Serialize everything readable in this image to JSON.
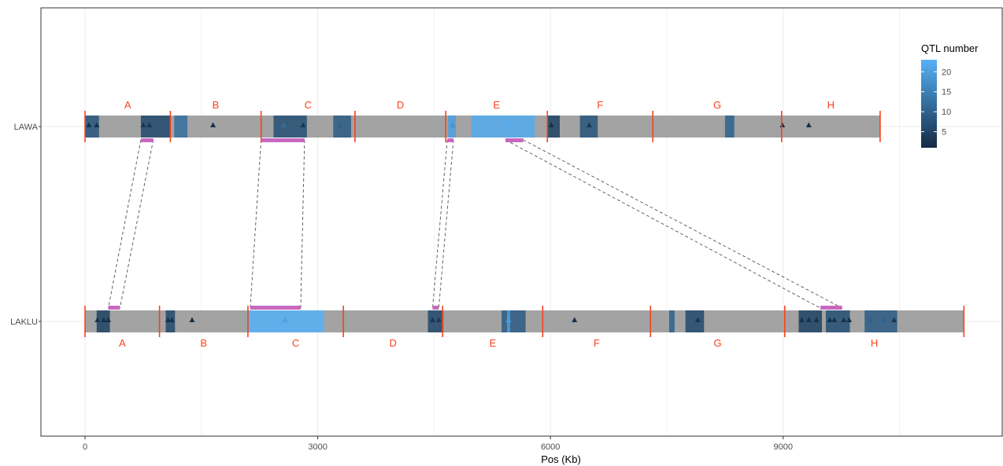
{
  "chart_data": {
    "type": "genome-map",
    "xlabel": "Pos (Kb)",
    "ylabel": "",
    "xlim": [
      -1700,
      11800
    ],
    "x_ticks": [
      0,
      3000,
      6000,
      9000
    ],
    "grid": true,
    "legend": {
      "title": "QTL number",
      "placement": "top-right",
      "ticks": [
        5,
        10,
        15,
        20
      ],
      "range": [
        1,
        23
      ],
      "color_low": "#132b43",
      "color_high": "#56b1f7"
    },
    "tracks": [
      {
        "name": "LAWA",
        "length": 10250,
        "boundaries": [
          0,
          1100,
          2270,
          3480,
          4650,
          5960,
          7320,
          8980,
          10250
        ],
        "segments": [
          {
            "label": "A",
            "start": 0,
            "end": 1100
          },
          {
            "label": "B",
            "start": 1100,
            "end": 2270
          },
          {
            "label": "C",
            "start": 2270,
            "end": 3480
          },
          {
            "label": "D",
            "start": 3480,
            "end": 4650
          },
          {
            "label": "E",
            "start": 4650,
            "end": 5960
          },
          {
            "label": "F",
            "start": 5960,
            "end": 7320
          },
          {
            "label": "G",
            "start": 7320,
            "end": 8980
          },
          {
            "label": "H",
            "start": 8980,
            "end": 10250
          }
        ],
        "qtl_regions": [
          {
            "start": 0,
            "end": 180,
            "qtl": 8
          },
          {
            "start": 720,
            "end": 1100,
            "qtl": 6
          },
          {
            "start": 1150,
            "end": 1320,
            "qtl": 12
          },
          {
            "start": 2430,
            "end": 2860,
            "qtl": 7
          },
          {
            "start": 3200,
            "end": 3430,
            "qtl": 9
          },
          {
            "start": 4680,
            "end": 4780,
            "qtl": 20
          },
          {
            "start": 4980,
            "end": 5800,
            "qtl": 22
          },
          {
            "start": 5960,
            "end": 6120,
            "qtl": 5
          },
          {
            "start": 6380,
            "end": 6610,
            "qtl": 8
          },
          {
            "start": 8250,
            "end": 8370,
            "qtl": 10
          }
        ],
        "markers": [
          {
            "pos": 50,
            "qtl": 2
          },
          {
            "pos": 150,
            "qtl": 2
          },
          {
            "pos": 750,
            "qtl": 3
          },
          {
            "pos": 830,
            "qtl": 3
          },
          {
            "pos": 1270,
            "qtl": 14
          },
          {
            "pos": 1650,
            "qtl": 2
          },
          {
            "pos": 2560,
            "qtl": 12
          },
          {
            "pos": 2810,
            "qtl": 3
          },
          {
            "pos": 3290,
            "qtl": 10
          },
          {
            "pos": 4740,
            "qtl": 18
          },
          {
            "pos": 5470,
            "qtl": 22
          },
          {
            "pos": 6010,
            "qtl": 2
          },
          {
            "pos": 6500,
            "qtl": 3
          },
          {
            "pos": 8320,
            "qtl": 12
          },
          {
            "pos": 8990,
            "qtl": 2
          },
          {
            "pos": 9330,
            "qtl": 2
          }
        ],
        "synteny_blocks": [
          {
            "start": 720,
            "end": 880
          },
          {
            "start": 2270,
            "end": 2830
          },
          {
            "start": 4670,
            "end": 4750
          },
          {
            "start": 5420,
            "end": 5650
          }
        ]
      },
      {
        "name": "LAKLU",
        "length": 11330,
        "boundaries": [
          0,
          960,
          2100,
          3330,
          4610,
          5900,
          7290,
          9020,
          11330
        ],
        "segments": [
          {
            "label": "A",
            "start": 0,
            "end": 960
          },
          {
            "label": "B",
            "start": 960,
            "end": 2100
          },
          {
            "label": "C",
            "start": 2100,
            "end": 3330
          },
          {
            "label": "D",
            "start": 3330,
            "end": 4610
          },
          {
            "label": "E",
            "start": 4610,
            "end": 5900
          },
          {
            "label": "F",
            "start": 5900,
            "end": 7290
          },
          {
            "label": "G",
            "start": 7290,
            "end": 9020
          },
          {
            "label": "H",
            "start": 9020,
            "end": 11330
          }
        ],
        "qtl_regions": [
          {
            "start": 150,
            "end": 320,
            "qtl": 5
          },
          {
            "start": 1040,
            "end": 1160,
            "qtl": 6
          },
          {
            "start": 2100,
            "end": 3080,
            "qtl": 23
          },
          {
            "start": 4420,
            "end": 4620,
            "qtl": 6
          },
          {
            "start": 5370,
            "end": 5680,
            "qtl": 9
          },
          {
            "start": 5440,
            "end": 5480,
            "qtl": 20
          },
          {
            "start": 7530,
            "end": 7600,
            "qtl": 10
          },
          {
            "start": 7740,
            "end": 7980,
            "qtl": 6
          },
          {
            "start": 9200,
            "end": 9500,
            "qtl": 5
          },
          {
            "start": 9550,
            "end": 9860,
            "qtl": 7
          },
          {
            "start": 10050,
            "end": 10470,
            "qtl": 9
          }
        ],
        "markers": [
          {
            "pos": 160,
            "qtl": 2
          },
          {
            "pos": 240,
            "qtl": 2
          },
          {
            "pos": 300,
            "qtl": 2
          },
          {
            "pos": 1070,
            "qtl": 2
          },
          {
            "pos": 1120,
            "qtl": 2
          },
          {
            "pos": 1380,
            "qtl": 2
          },
          {
            "pos": 2580,
            "qtl": 20
          },
          {
            "pos": 4480,
            "qtl": 3
          },
          {
            "pos": 4560,
            "qtl": 3
          },
          {
            "pos": 5460,
            "qtl": 20
          },
          {
            "pos": 6310,
            "qtl": 2
          },
          {
            "pos": 7560,
            "qtl": 12
          },
          {
            "pos": 7900,
            "qtl": 3
          },
          {
            "pos": 9240,
            "qtl": 2
          },
          {
            "pos": 9330,
            "qtl": 2
          },
          {
            "pos": 9430,
            "qtl": 2
          },
          {
            "pos": 9600,
            "qtl": 2
          },
          {
            "pos": 9660,
            "qtl": 2
          },
          {
            "pos": 9780,
            "qtl": 2
          },
          {
            "pos": 9850,
            "qtl": 2
          },
          {
            "pos": 10130,
            "qtl": 10
          },
          {
            "pos": 10290,
            "qtl": 10
          },
          {
            "pos": 10430,
            "qtl": 3
          }
        ],
        "synteny_blocks": [
          {
            "start": 300,
            "end": 450
          },
          {
            "start": 2130,
            "end": 2780
          },
          {
            "start": 4480,
            "end": 4560
          },
          {
            "start": 9480,
            "end": 9760
          }
        ]
      }
    ],
    "synteny_links": [
      {
        "from": 0,
        "to": 0
      },
      {
        "from": 1,
        "to": 1
      },
      {
        "from": 2,
        "to": 2
      },
      {
        "from": 3,
        "to": 3
      }
    ],
    "colors": {
      "panel_border": "#333333",
      "grid": "#ebebeb",
      "chromosome": "#a3a3a3",
      "boundary": "#f8421c",
      "segment_label": "#f8421c",
      "synteny_block": "#c868c0",
      "link": "#555555"
    }
  }
}
